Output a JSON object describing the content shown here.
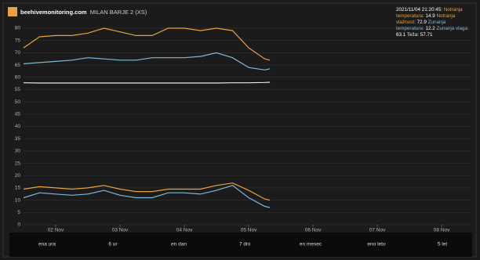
{
  "header": {
    "site": "beehivemonitoring.com",
    "hive": "MILAN BARJE 2 (XS)"
  },
  "tooltip": {
    "time": "2021/11/04 21:20:45:",
    "values": [
      14.9,
      72.9,
      12.2,
      63.1,
      57.71
    ]
  },
  "buttons": [
    "ena ura",
    "6 ur",
    "en dan",
    "7 dni",
    "en mesec",
    "eno leto",
    "5 let"
  ],
  "chart_data": {
    "type": "line",
    "x": [
      1.5,
      1.75,
      2.0,
      2.25,
      2.5,
      2.75,
      3.0,
      3.25,
      3.5,
      3.75,
      4.0,
      4.25,
      4.5,
      4.75,
      5.0,
      5.25,
      5.33
    ],
    "series": [
      {
        "name": "Notranja temperatura:",
        "color": "#e8a33a",
        "values": [
          14.5,
          15.5,
          15,
          14.5,
          15,
          16,
          14.5,
          13.5,
          13.5,
          14.5,
          14.5,
          14.5,
          16,
          17,
          14,
          10.5,
          10
        ]
      },
      {
        "name": "Notranja vlažnost:",
        "color": "#e8a33a",
        "values": [
          72,
          76.5,
          77,
          77,
          78,
          80,
          78.5,
          77,
          77,
          80,
          80,
          79,
          80,
          79,
          72,
          67.5,
          67
        ]
      },
      {
        "name": "Zunanja temperatura:",
        "color": "#7fb8d8",
        "values": [
          11,
          13,
          12.5,
          12,
          12.5,
          14,
          12,
          11,
          11,
          13,
          13,
          12.5,
          14,
          16,
          11,
          7.5,
          7
        ]
      },
      {
        "name": "Zunanja vlaga:",
        "color": "#7fb8d8",
        "values": [
          65.5,
          66,
          66.5,
          67,
          68,
          67.5,
          67,
          67,
          68,
          68,
          68,
          68.5,
          70,
          68,
          64,
          63,
          63.5
        ]
      },
      {
        "name": "Teža:",
        "color": "#e8e8e8",
        "values": [
          57.8,
          57.7,
          57.7,
          57.7,
          57.7,
          57.7,
          57.7,
          57.7,
          57.7,
          57.7,
          57.7,
          57.7,
          57.7,
          57.8,
          57.8,
          57.9,
          58
        ]
      }
    ],
    "xlim": [
      1.5,
      8.45
    ],
    "xticks": [
      {
        "value": 2,
        "label": "02 Nov"
      },
      {
        "value": 3,
        "label": "03 Nov"
      },
      {
        "value": 4,
        "label": "04 Nov"
      },
      {
        "value": 5,
        "label": "05 Nov"
      },
      {
        "value": 6,
        "label": "06 Nov"
      },
      {
        "value": 7,
        "label": "07 Nov"
      },
      {
        "value": 8,
        "label": "08 Nov"
      }
    ],
    "ylim": [
      0,
      80
    ],
    "yticks": [
      0,
      5,
      10,
      15,
      20,
      25,
      30,
      35,
      40,
      45,
      50,
      55,
      60,
      65,
      70,
      75,
      80
    ],
    "grid": true
  }
}
